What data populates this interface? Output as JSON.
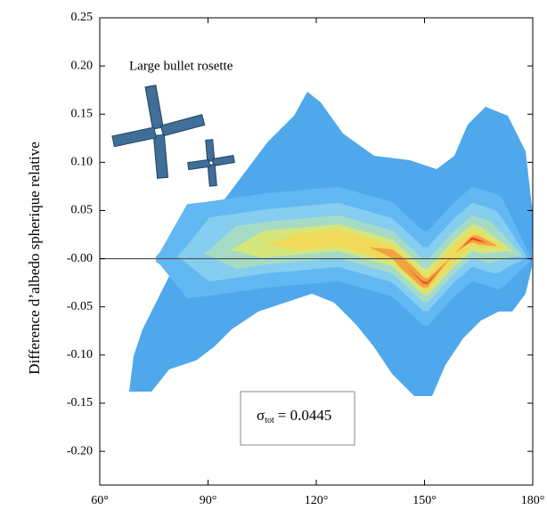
{
  "chart_data": {
    "type": "density",
    "y_label": "Difference d’albedo spherique relative",
    "annotation": "Large bullet rosette",
    "stat_symbol": "σ",
    "stat_subscript": "tot",
    "stat_text": "= 0.0445",
    "reference_line": 0,
    "xlim": [
      60,
      180
    ],
    "xticks": [
      {
        "value": 60,
        "label": "60°"
      },
      {
        "value": 90,
        "label": "90°"
      },
      {
        "value": 120,
        "label": "120°"
      },
      {
        "value": 150,
        "label": "150°"
      },
      {
        "value": 180,
        "label": "180°"
      }
    ],
    "ylim": [
      -0.235,
      0.25
    ],
    "yticks": [
      {
        "value": 0.25,
        "label": "0.25"
      },
      {
        "value": 0.2,
        "label": "0.20"
      },
      {
        "value": 0.15,
        "label": "0.15"
      },
      {
        "value": 0.1,
        "label": "0.10"
      },
      {
        "value": 0.05,
        "label": "0.05"
      },
      {
        "value": 0,
        "label": "-0.00"
      },
      {
        "value": -0.05,
        "label": "-0.05"
      },
      {
        "value": -0.1,
        "label": "-0.10"
      },
      {
        "value": -0.15,
        "label": "-0.15"
      },
      {
        "value": -0.2,
        "label": "-0.20"
      }
    ]
  }
}
